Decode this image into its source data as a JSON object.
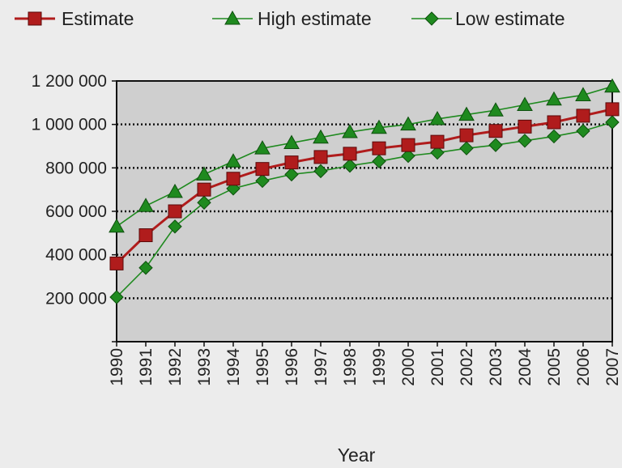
{
  "chart_data": {
    "type": "line",
    "title": "",
    "xlabel": "Year",
    "ylabel": "",
    "x": [
      "1990",
      "1991",
      "1992",
      "1993",
      "1994",
      "1995",
      "1996",
      "1997",
      "1998",
      "1999",
      "2000",
      "2001",
      "2002",
      "2003",
      "2004",
      "2005",
      "2006",
      "2007"
    ],
    "ylim": [
      0,
      1200000
    ],
    "yticks": [
      200000,
      400000,
      600000,
      800000,
      1000000,
      1200000
    ],
    "ytick_labels": [
      "200 000",
      "400 000",
      "600 000",
      "800 000",
      "1 000 000",
      "1 200 000"
    ],
    "grid": "horizontal dotted",
    "legend": "top",
    "series": [
      {
        "name": "Estimate",
        "color": "#b01c1c",
        "marker": "square",
        "values": [
          360000,
          490000,
          600000,
          700000,
          750000,
          795000,
          825000,
          850000,
          865000,
          890000,
          905000,
          920000,
          950000,
          970000,
          990000,
          1010000,
          1040000,
          1070000
        ]
      },
      {
        "name": "High estimate",
        "color": "#1f8a1f",
        "marker": "triangle",
        "values": [
          530000,
          625000,
          690000,
          770000,
          830000,
          890000,
          915000,
          940000,
          965000,
          985000,
          1000000,
          1025000,
          1045000,
          1065000,
          1090000,
          1115000,
          1135000,
          1175000
        ]
      },
      {
        "name": "Low estimate",
        "color": "#1f8a1f",
        "marker": "diamond",
        "values": [
          205000,
          340000,
          530000,
          640000,
          705000,
          740000,
          770000,
          785000,
          810000,
          830000,
          855000,
          870000,
          890000,
          905000,
          925000,
          945000,
          970000,
          1010000
        ]
      }
    ]
  }
}
